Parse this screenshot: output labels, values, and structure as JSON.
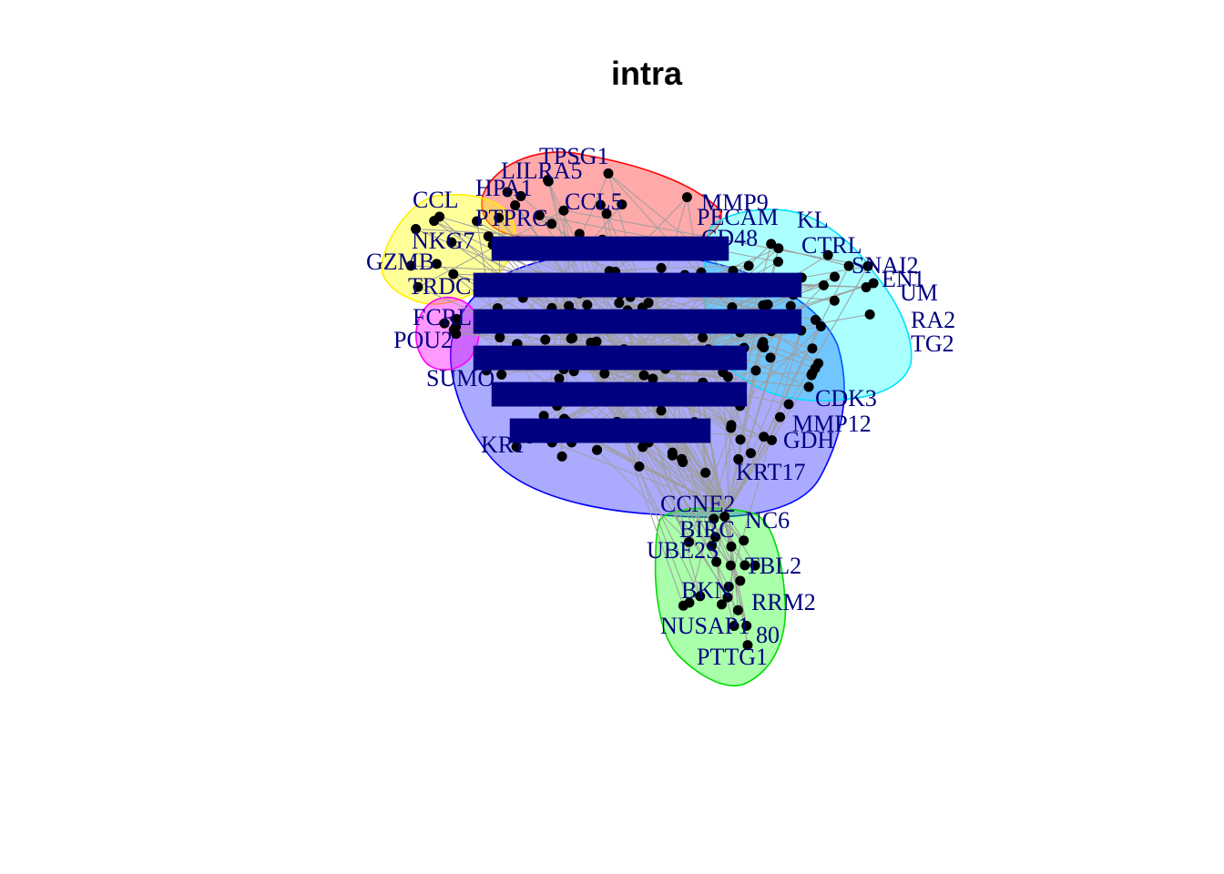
{
  "title": "intra",
  "colors": {
    "edge": "#9e9e9e",
    "node": "#000000",
    "label": "#000080"
  },
  "clusters": [
    {
      "name": "red",
      "fill": "#ff000055",
      "stroke": "#ff0000"
    },
    {
      "name": "yellow",
      "fill": "#ffff0066",
      "stroke": "#ffee00"
    },
    {
      "name": "cyan",
      "fill": "#00ffff55",
      "stroke": "#00e0ff"
    },
    {
      "name": "magenta",
      "fill": "#ff00ff66",
      "stroke": "#ff00ff"
    },
    {
      "name": "blue",
      "fill": "#0000ff55",
      "stroke": "#0000ff"
    },
    {
      "name": "green",
      "fill": "#00ff0055",
      "stroke": "#00dd00"
    }
  ],
  "labels": [
    "TPSG1",
    "LILRA5",
    "HPA1",
    "CCL",
    "PTPRC",
    "NKG7",
    "GZMB",
    "TRDC",
    "FCRL",
    "POU2",
    "SUMO",
    "KRT",
    "CCL5",
    "MMP9",
    "PECAM",
    "CD48",
    "KL",
    "CTRL",
    "SNAI2",
    "EN1",
    "UM",
    "RA2",
    "TG2",
    "CDK3",
    "MMP12",
    "GDH",
    "KRT17",
    "CCNE2",
    "NC6",
    "BIRC",
    "UBE2S",
    "TBL2",
    "BKN",
    "RRM2",
    "NUSAP1",
    "80",
    "PTTG1"
  ]
}
